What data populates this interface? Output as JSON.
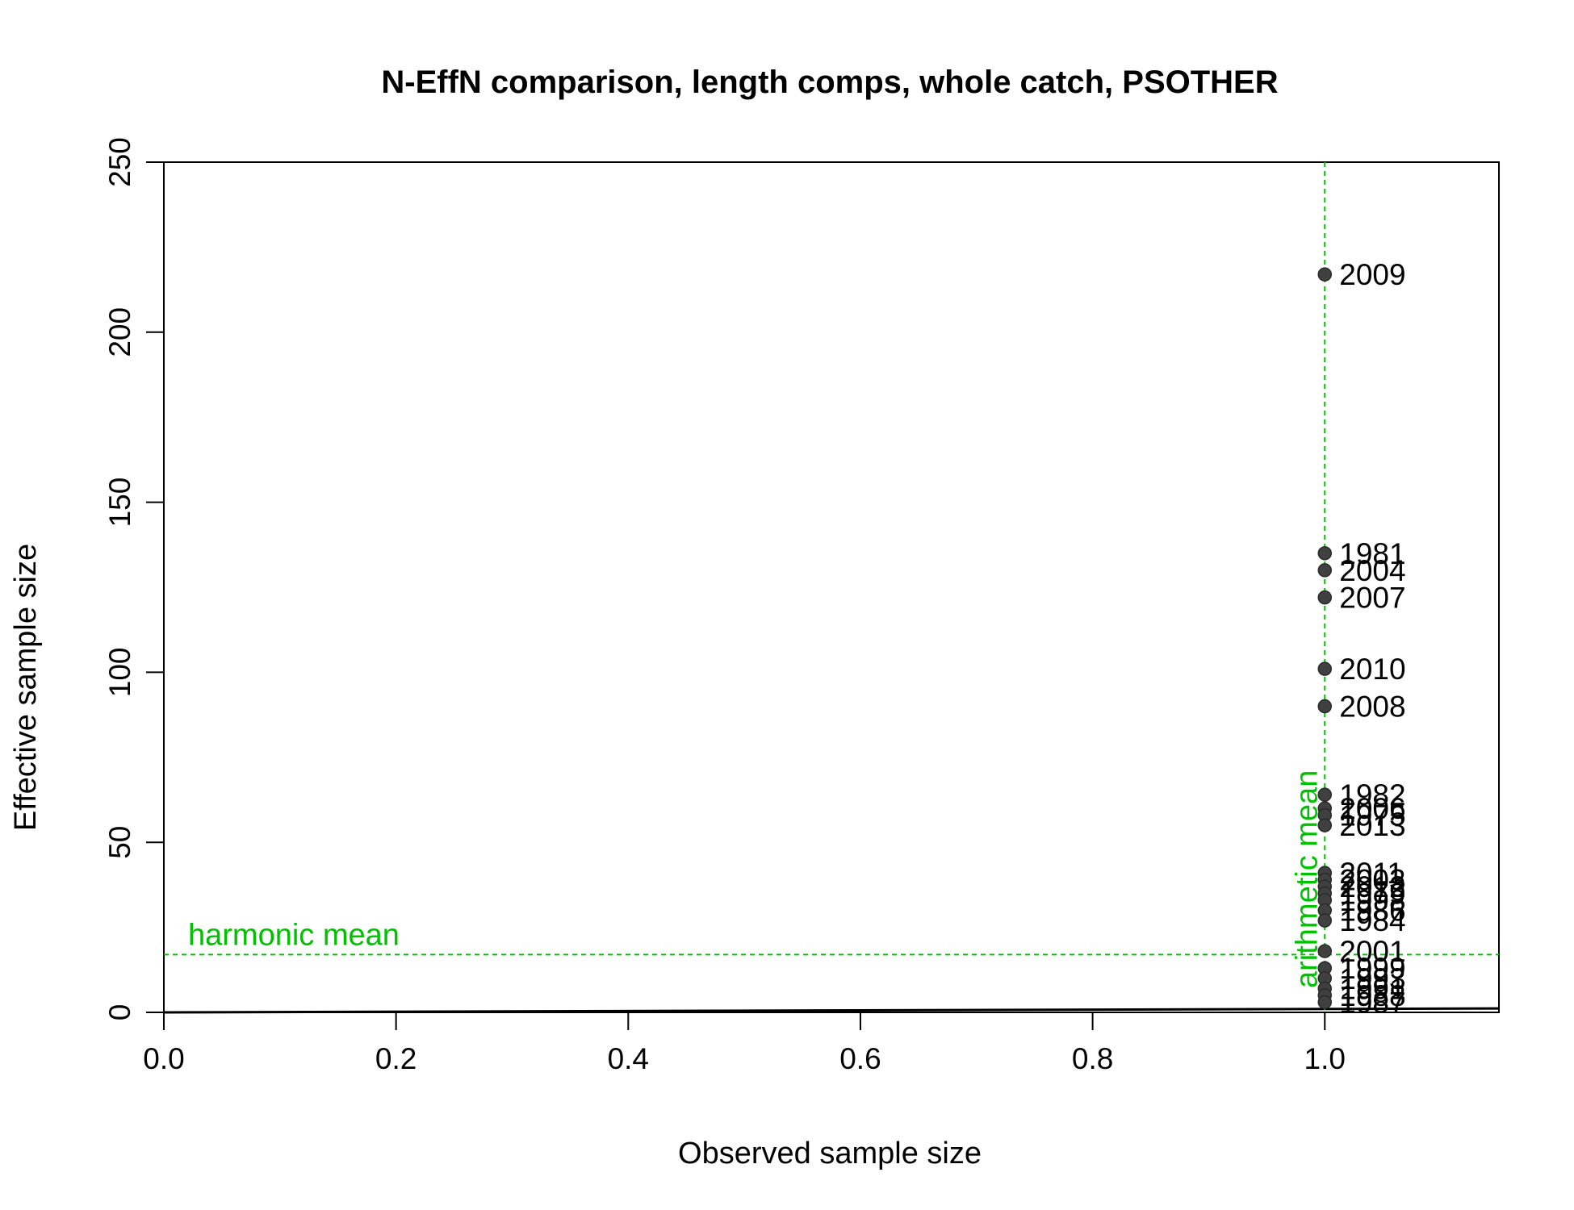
{
  "chart_data": {
    "type": "scatter",
    "title": "N-EffN comparison, length comps, whole catch, PSOTHER",
    "xlabel": "Observed sample size",
    "ylabel": "Effective sample size",
    "xlim": [
      0,
      1.15
    ],
    "ylim": [
      0,
      250
    ],
    "xticks": [
      "0.0",
      "0.2",
      "0.4",
      "0.6",
      "0.8",
      "1.0"
    ],
    "yticks": [
      "0",
      "50",
      "100",
      "150",
      "200",
      "250"
    ],
    "grid": false,
    "point_color": "#404040",
    "ref_color": "#00c000",
    "harmonic_mean": {
      "label": "harmonic mean",
      "value": 17
    },
    "arithmetic_mean": {
      "label": "arithmetic mean",
      "value": 1.0
    },
    "points": [
      {
        "label": "2009",
        "x": 1.0,
        "y": 217
      },
      {
        "label": "1981",
        "x": 1.0,
        "y": 135
      },
      {
        "label": "2004",
        "x": 1.0,
        "y": 130
      },
      {
        "label": "2007",
        "x": 1.0,
        "y": 122
      },
      {
        "label": "2010",
        "x": 1.0,
        "y": 101
      },
      {
        "label": "2008",
        "x": 1.0,
        "y": 90
      },
      {
        "label": "1982",
        "x": 1.0,
        "y": 64
      },
      {
        "label": "2006",
        "x": 1.0,
        "y": 60
      },
      {
        "label": "1975",
        "x": 1.0,
        "y": 58
      },
      {
        "label": "2013",
        "x": 1.0,
        "y": 55
      },
      {
        "label": "2011",
        "x": 1.0,
        "y": 41
      },
      {
        "label": "2003",
        "x": 1.0,
        "y": 39
      },
      {
        "label": "2012",
        "x": 1.0,
        "y": 37
      },
      {
        "label": "1979",
        "x": 1.0,
        "y": 35
      },
      {
        "label": "1998",
        "x": 1.0,
        "y": 33
      },
      {
        "label": "1986",
        "x": 1.0,
        "y": 30
      },
      {
        "label": "1984",
        "x": 1.0,
        "y": 27
      },
      {
        "label": "2001",
        "x": 1.0,
        "y": 18
      },
      {
        "label": "1999",
        "x": 1.0,
        "y": 13
      },
      {
        "label": "1993",
        "x": 1.0,
        "y": 10
      },
      {
        "label": "1991",
        "x": 1.0,
        "y": 7
      },
      {
        "label": "1988",
        "x": 1.0,
        "y": 5
      },
      {
        "label": "1987",
        "x": 1.0,
        "y": 3
      }
    ]
  }
}
